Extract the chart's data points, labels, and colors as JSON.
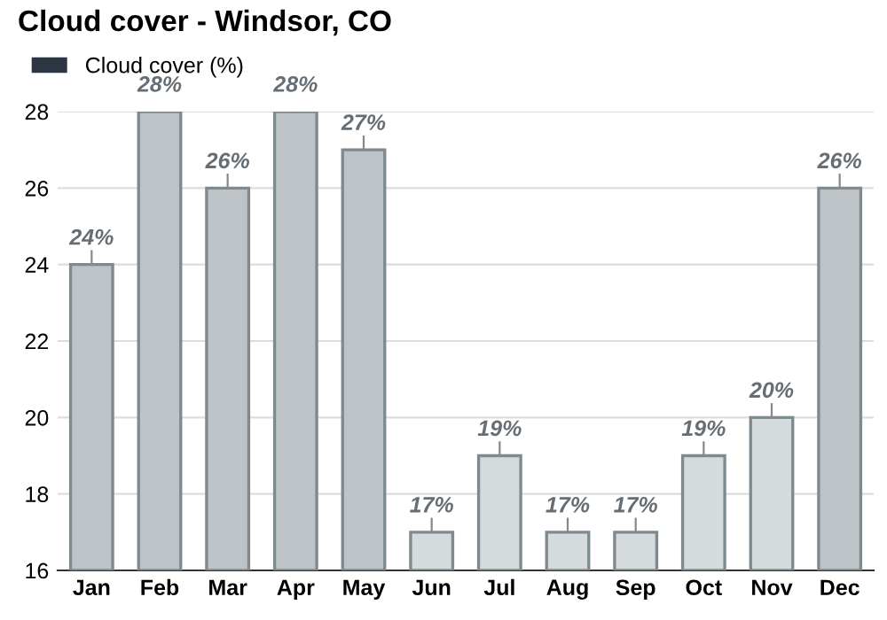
{
  "chart_data": {
    "type": "bar",
    "title": "Cloud cover - Windsor, CO",
    "categories": [
      "Jan",
      "Feb",
      "Mar",
      "Apr",
      "May",
      "Jun",
      "Jul",
      "Aug",
      "Sep",
      "Oct",
      "Nov",
      "Dec"
    ],
    "series": [
      {
        "name": "Cloud cover (%)",
        "color": "#2b3642",
        "values": [
          24,
          28,
          26,
          28,
          27,
          17,
          19,
          17,
          17,
          19,
          20,
          26
        ],
        "colors": [
          "#bdc3c7",
          "#bdc3c7",
          "#bdc3c7",
          "#bdc3c7",
          "#bdc3c7",
          "#d5dadd",
          "#d5dadd",
          "#d5dadd",
          "#d5dadd",
          "#d5dadd",
          "#d5dadd",
          "#bdc3c7"
        ],
        "value_labels": [
          "24%",
          "28%",
          "26%",
          "28%",
          "27%",
          "17%",
          "19%",
          "17%",
          "17%",
          "19%",
          "20%",
          "26%"
        ]
      }
    ],
    "ylim": [
      16,
      28
    ],
    "yticks": [
      16,
      18,
      20,
      22,
      24,
      26,
      28
    ],
    "grid": "y",
    "legend": "top left"
  }
}
